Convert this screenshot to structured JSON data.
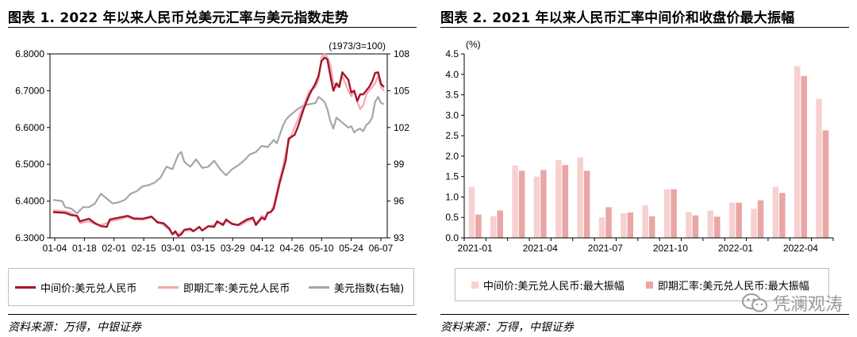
{
  "left": {
    "title": "图表 1. 2022 年以来人民币兑美元汇率与美元指数走势",
    "source": "资料来源：万得，中银证券",
    "chart_data": {
      "type": "line",
      "y_left": {
        "min": 6.3,
        "max": 6.8,
        "ticks": [
          "6.3000",
          "6.4000",
          "6.5000",
          "6.6000",
          "6.7000",
          "6.8000"
        ]
      },
      "y_right": {
        "min": 93,
        "max": 108,
        "ticks": [
          "93",
          "96",
          "99",
          "102",
          "105",
          "108"
        ],
        "unit": "(1973/3=100)"
      },
      "x_ticks": [
        "01-04",
        "01-18",
        "02-01",
        "02-15",
        "03-01",
        "03-15",
        "03-29",
        "04-12",
        "04-26",
        "05-10",
        "05-24",
        "06-07"
      ],
      "x_count": 112,
      "series": [
        {
          "name": "中间价:美元兑人民币",
          "axis": "left",
          "color": "#a3152e",
          "points": [
            [
              0,
              6.37
            ],
            [
              4,
              6.368
            ],
            [
              6,
              6.362
            ],
            [
              8,
              6.36
            ],
            [
              9,
              6.345
            ],
            [
              12,
              6.352
            ],
            [
              14,
              6.34
            ],
            [
              16,
              6.332
            ],
            [
              18,
              6.33
            ],
            [
              19,
              6.35
            ],
            [
              22,
              6.355
            ],
            [
              25,
              6.36
            ],
            [
              27,
              6.353
            ],
            [
              30,
              6.352
            ],
            [
              33,
              6.358
            ],
            [
              35,
              6.342
            ],
            [
              37,
              6.34
            ],
            [
              39,
              6.325
            ],
            [
              40,
              6.31
            ],
            [
              41,
              6.318
            ],
            [
              42,
              6.305
            ],
            [
              43,
              6.31
            ],
            [
              44,
              6.322
            ],
            [
              46,
              6.325
            ],
            [
              47,
              6.318
            ],
            [
              49,
              6.33
            ],
            [
              50,
              6.32
            ],
            [
              52,
              6.332
            ],
            [
              54,
              6.33
            ],
            [
              55,
              6.345
            ],
            [
              57,
              6.335
            ],
            [
              58,
              6.35
            ],
            [
              60,
              6.338
            ],
            [
              62,
              6.335
            ],
            [
              63,
              6.34
            ],
            [
              65,
              6.35
            ],
            [
              67,
              6.355
            ],
            [
              68,
              6.335
            ],
            [
              70,
              6.355
            ],
            [
              71,
              6.35
            ],
            [
              72,
              6.368
            ],
            [
              73,
              6.37
            ],
            [
              74,
              6.38
            ],
            [
              76,
              6.45
            ],
            [
              77,
              6.48
            ],
            [
              78,
              6.51
            ],
            [
              79,
              6.57
            ],
            [
              81,
              6.58
            ],
            [
              82,
              6.6
            ],
            [
              84,
              6.65
            ],
            [
              86,
              6.69
            ],
            [
              88,
              6.72
            ],
            [
              89,
              6.74
            ],
            [
              90,
              6.78
            ],
            [
              91,
              6.79
            ],
            [
              92,
              6.785
            ],
            [
              93,
              6.74
            ],
            [
              94,
              6.7
            ],
            [
              95,
              6.72
            ],
            [
              96,
              6.71
            ],
            [
              97,
              6.75
            ],
            [
              99,
              6.73
            ],
            [
              100,
              6.695
            ],
            [
              101,
              6.7
            ],
            [
              102,
              6.672
            ],
            [
              103,
              6.69
            ],
            [
              104,
              6.69
            ],
            [
              105,
              6.7
            ],
            [
              106,
              6.71
            ],
            [
              107,
              6.725
            ],
            [
              108,
              6.748
            ],
            [
              109,
              6.75
            ],
            [
              110,
              6.718
            ],
            [
              111,
              6.71
            ]
          ]
        },
        {
          "name": "即期汇率:美元兑人民币",
          "axis": "left",
          "color": "#f0a9ab",
          "points": [
            [
              0,
              6.375
            ],
            [
              4,
              6.372
            ],
            [
              6,
              6.368
            ],
            [
              8,
              6.357
            ],
            [
              9,
              6.34
            ],
            [
              12,
              6.345
            ],
            [
              14,
              6.338
            ],
            [
              16,
              6.335
            ],
            [
              18,
              6.34
            ],
            [
              19,
              6.345
            ],
            [
              22,
              6.35
            ],
            [
              25,
              6.357
            ],
            [
              27,
              6.35
            ],
            [
              30,
              6.35
            ],
            [
              33,
              6.355
            ],
            [
              35,
              6.345
            ],
            [
              37,
              6.335
            ],
            [
              39,
              6.322
            ],
            [
              40,
              6.31
            ],
            [
              41,
              6.312
            ],
            [
              42,
              6.31
            ],
            [
              43,
              6.315
            ],
            [
              44,
              6.32
            ],
            [
              46,
              6.32
            ],
            [
              47,
              6.318
            ],
            [
              49,
              6.33
            ],
            [
              50,
              6.32
            ],
            [
              52,
              6.33
            ],
            [
              54,
              6.335
            ],
            [
              55,
              6.34
            ],
            [
              57,
              6.34
            ],
            [
              58,
              6.345
            ],
            [
              60,
              6.34
            ],
            [
              62,
              6.335
            ],
            [
              63,
              6.335
            ],
            [
              65,
              6.345
            ],
            [
              67,
              6.35
            ],
            [
              68,
              6.34
            ],
            [
              70,
              6.36
            ],
            [
              71,
              6.355
            ],
            [
              72,
              6.37
            ],
            [
              73,
              6.37
            ],
            [
              74,
              6.39
            ],
            [
              76,
              6.46
            ],
            [
              77,
              6.49
            ],
            [
              78,
              6.53
            ],
            [
              79,
              6.56
            ],
            [
              81,
              6.6
            ],
            [
              82,
              6.62
            ],
            [
              84,
              6.66
            ],
            [
              86,
              6.7
            ],
            [
              88,
              6.71
            ],
            [
              89,
              6.73
            ],
            [
              90,
              6.79
            ],
            [
              91,
              6.8
            ],
            [
              92,
              6.79
            ],
            [
              93,
              6.77
            ],
            [
              94,
              6.72
            ],
            [
              95,
              6.71
            ],
            [
              96,
              6.72
            ],
            [
              97,
              6.74
            ],
            [
              99,
              6.7
            ],
            [
              100,
              6.685
            ],
            [
              101,
              6.7
            ],
            [
              102,
              6.67
            ],
            [
              103,
              6.65
            ],
            [
              104,
              6.66
            ],
            [
              105,
              6.69
            ],
            [
              106,
              6.7
            ],
            [
              107,
              6.71
            ],
            [
              108,
              6.72
            ],
            [
              109,
              6.74
            ],
            [
              110,
              6.71
            ],
            [
              111,
              6.7
            ]
          ]
        },
        {
          "name": "美元指数(右轴)",
          "axis": "right",
          "color": "#a6a6a6",
          "points": [
            [
              0,
              96.1
            ],
            [
              3,
              96.0
            ],
            [
              4,
              95.5
            ],
            [
              6,
              95.4
            ],
            [
              8,
              95.0
            ],
            [
              10,
              95.5
            ],
            [
              12,
              95.5
            ],
            [
              14,
              95.8
            ],
            [
              16,
              96.6
            ],
            [
              18,
              96.2
            ],
            [
              20,
              95.8
            ],
            [
              22,
              95.9
            ],
            [
              24,
              96.1
            ],
            [
              26,
              96.6
            ],
            [
              28,
              96.8
            ],
            [
              30,
              97.2
            ],
            [
              32,
              97.3
            ],
            [
              34,
              97.5
            ],
            [
              36,
              97.9
            ],
            [
              38,
              98.8
            ],
            [
              40,
              98.6
            ],
            [
              41,
              99.2
            ],
            [
              42,
              99.8
            ],
            [
              43,
              100.0
            ],
            [
              44,
              99.2
            ],
            [
              46,
              98.8
            ],
            [
              48,
              99.4
            ],
            [
              50,
              98.7
            ],
            [
              52,
              98.8
            ],
            [
              54,
              99.3
            ],
            [
              56,
              98.6
            ],
            [
              58,
              98.1
            ],
            [
              60,
              98.6
            ],
            [
              62,
              98.9
            ],
            [
              64,
              99.3
            ],
            [
              66,
              99.8
            ],
            [
              68,
              100.0
            ],
            [
              70,
              100.5
            ],
            [
              72,
              100.4
            ],
            [
              73,
              100.7
            ],
            [
              74,
              101.0
            ],
            [
              75,
              100.7
            ],
            [
              76,
              101.4
            ],
            [
              77,
              102.1
            ],
            [
              78,
              102.6
            ],
            [
              79,
              102.9
            ],
            [
              81,
              103.3
            ],
            [
              82,
              103.5
            ],
            [
              84,
              103.8
            ],
            [
              86,
              103.9
            ],
            [
              88,
              104.0
            ],
            [
              89,
              104.5
            ],
            [
              90,
              104.3
            ],
            [
              91,
              104.1
            ],
            [
              92,
              103.5
            ],
            [
              93,
              102.5
            ],
            [
              94,
              101.9
            ],
            [
              95,
              102.8
            ],
            [
              97,
              102.4
            ],
            [
              99,
              102.0
            ],
            [
              100,
              102.1
            ],
            [
              101,
              101.6
            ],
            [
              102,
              101.8
            ],
            [
              103,
              101.9
            ],
            [
              104,
              101.7
            ],
            [
              105,
              102.2
            ],
            [
              106,
              102.4
            ],
            [
              107,
              102.8
            ],
            [
              108,
              104.1
            ],
            [
              109,
              104.5
            ],
            [
              110,
              104.0
            ],
            [
              111,
              103.9
            ]
          ]
        }
      ]
    },
    "legend": [
      {
        "label": "中间价:美元兑人民币",
        "color": "#a3152e"
      },
      {
        "label": "即期汇率:美元兑人民币",
        "color": "#f0a9ab"
      },
      {
        "label": "美元指数(右轴)",
        "color": "#a6a6a6"
      }
    ]
  },
  "right": {
    "title": "图表 2. 2021 年以来人民币汇率中间价和收盘价最大振幅",
    "source": "资料来源：万得，中银证券",
    "chart_data": {
      "type": "bar",
      "y": {
        "min": 0,
        "max": 4.5,
        "ticks": [
          "0.0",
          "0.5",
          "1.0",
          "1.5",
          "2.0",
          "2.5",
          "3.0",
          "3.5",
          "4.0",
          "4.5"
        ],
        "unit": "(%)"
      },
      "categories": [
        "2021-01",
        "2021-02",
        "2021-03",
        "2021-04",
        "2021-05",
        "2021-06",
        "2021-07",
        "2021-08",
        "2021-09",
        "2021-10",
        "2021-11",
        "2021-12",
        "2022-01",
        "2022-02",
        "2022-03",
        "2022-04",
        "2022-05"
      ],
      "x_labels": [
        {
          "index": 0,
          "label": "2021-01"
        },
        {
          "index": 3,
          "label": "2021-04"
        },
        {
          "index": 6,
          "label": "2021-07"
        },
        {
          "index": 9,
          "label": "2021-10"
        },
        {
          "index": 12,
          "label": "2022-01"
        },
        {
          "index": 15,
          "label": "2022-04"
        }
      ],
      "series": [
        {
          "name": "中间价:美元兑人民币:最大振幅",
          "color": "#f7d0d0",
          "values": [
            1.25,
            0.53,
            1.77,
            1.5,
            1.9,
            1.97,
            0.5,
            0.6,
            0.8,
            1.19,
            0.63,
            0.67,
            0.86,
            0.71,
            1.25,
            4.2,
            3.4
          ]
        },
        {
          "name": "即期汇率:美元兑人民币:最大振幅",
          "color": "#e9a6a6",
          "values": [
            0.57,
            0.67,
            1.64,
            1.66,
            1.78,
            1.64,
            0.75,
            0.62,
            0.53,
            1.19,
            0.55,
            0.52,
            0.86,
            0.92,
            1.1,
            3.96,
            2.63
          ]
        }
      ]
    },
    "legend": [
      {
        "label": "中间价:美元兑人民币:最大振幅",
        "color": "#f7d0d0"
      },
      {
        "label": "即期汇率:美元兑人民币:最大振幅",
        "color": "#e9a6a6"
      }
    ],
    "watermark": "凭澜观涛"
  }
}
